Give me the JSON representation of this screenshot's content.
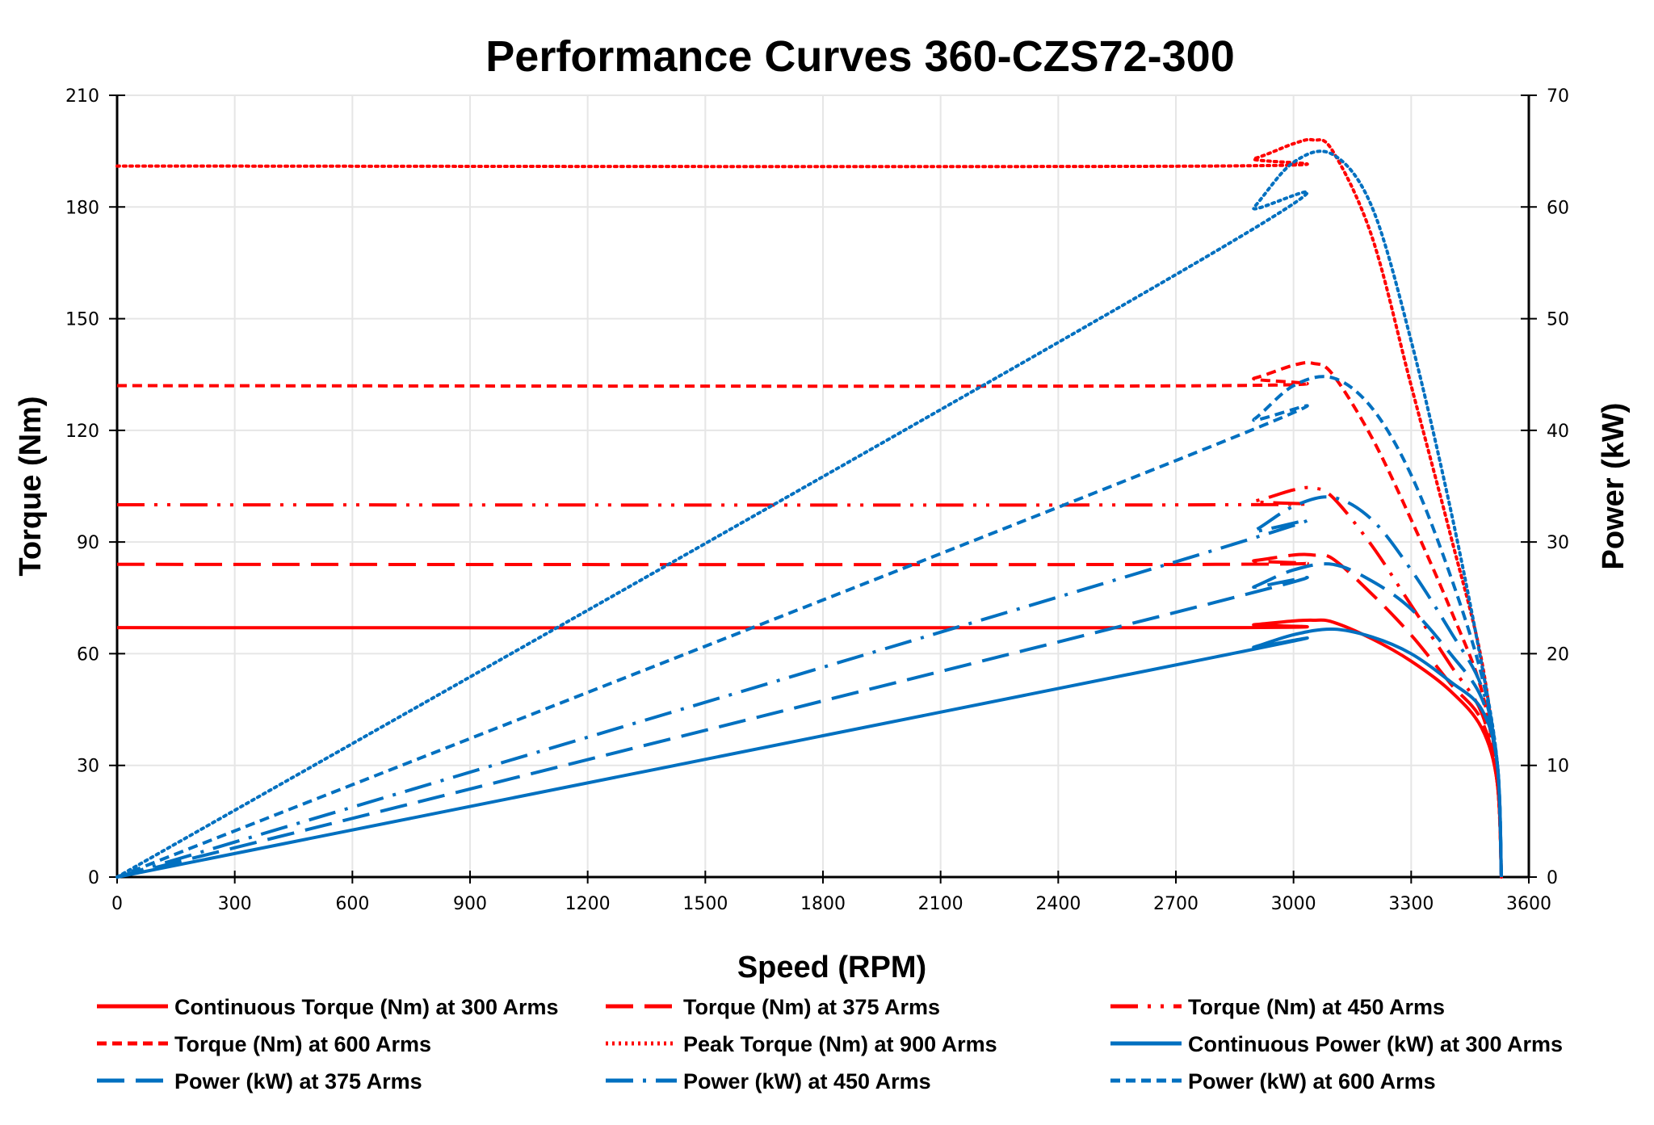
{
  "chart_data": {
    "type": "line",
    "title": "Performance Curves 360-CZS72-300",
    "xlabel": "Speed (RPM)",
    "ylabel": "Torque (Nm)",
    "y2label": "Power (kW)",
    "xlim": [
      0,
      3600
    ],
    "ylim": [
      0,
      210
    ],
    "y2lim": [
      0,
      70
    ],
    "xticks": [
      0,
      300,
      600,
      900,
      1200,
      1500,
      1800,
      2100,
      2400,
      2700,
      3000,
      3300,
      3600
    ],
    "yticks": [
      0,
      30,
      60,
      90,
      120,
      150,
      180,
      210
    ],
    "y2ticks": [
      0,
      10,
      20,
      30,
      40,
      50,
      60,
      70
    ],
    "grid": true,
    "legend_placement": "bottom",
    "colors": {
      "torque": "#ff0000",
      "power": "#0070c0"
    },
    "torque_x": [
      0,
      2800,
      2900,
      3000,
      3050,
      3100,
      3200,
      3300,
      3400,
      3480,
      3520,
      3530
    ],
    "power_x": [
      0,
      2800,
      2900,
      3000,
      3100,
      3200,
      3300,
      3400,
      3480,
      3520,
      3530
    ],
    "series": [
      {
        "name": "Continuous Torque (Nm) at 300 Arms",
        "axis": "left",
        "color": "#ff0000",
        "style": "solid",
        "values": [
          67,
          67,
          67.8,
          68.8,
          69,
          68.5,
          64,
          58,
          50,
          40,
          25,
          0
        ]
      },
      {
        "name": "Torque (Nm) at 375 Arms",
        "axis": "left",
        "color": "#ff0000",
        "style": "longdash",
        "values": [
          84,
          84,
          85,
          86.5,
          86.5,
          85.5,
          76,
          65,
          52,
          42,
          25,
          0
        ]
      },
      {
        "name": "Torque (Nm) at 450 Arms",
        "axis": "left",
        "color": "#ff0000",
        "style": "dashdotdot",
        "values": [
          100,
          100,
          101,
          104,
          104.5,
          102,
          89,
          73,
          57,
          44,
          25,
          0
        ]
      },
      {
        "name": "Torque (Nm) at 600 Arms",
        "axis": "left",
        "color": "#ff0000",
        "style": "dash",
        "values": [
          132,
          132,
          134,
          137.5,
          138,
          135,
          118,
          96,
          72,
          50,
          25,
          0
        ]
      },
      {
        "name": "Peak Torque (Nm) at 900  Arms",
        "axis": "left",
        "color": "#ff0000",
        "style": "dot",
        "values": [
          191,
          191,
          193,
          197,
          198,
          195,
          172,
          132,
          92,
          58,
          25,
          0
        ]
      },
      {
        "name": "Continuous Power (kW) at 300 Arms",
        "axis": "right",
        "color": "#0070c0",
        "style": "solid",
        "values": [
          0,
          19.7,
          20.6,
          21.7,
          22.2,
          21.5,
          20,
          17.5,
          15,
          10,
          0
        ]
      },
      {
        "name": "Power (kW) at 375 Arms",
        "axis": "right",
        "color": "#0070c0",
        "style": "longdash",
        "values": [
          0,
          24.6,
          26,
          27.5,
          28,
          26.5,
          24,
          20,
          16,
          10,
          0
        ]
      },
      {
        "name": "Power (kW) at 450 Arms",
        "axis": "right",
        "color": "#0070c0",
        "style": "dashdot",
        "values": [
          0,
          29.3,
          31,
          33.2,
          34,
          32,
          27.5,
          22,
          17,
          10,
          0
        ]
      },
      {
        "name": "Power (kW) at 600 Arms",
        "axis": "right",
        "color": "#0070c0",
        "style": "dash",
        "values": [
          0,
          38.7,
          41,
          44,
          44.7,
          42,
          36,
          27,
          18,
          10,
          0
        ]
      },
      {
        "name": "",
        "axis": "right",
        "color": "#0070c0",
        "style": "dot",
        "values": [
          0,
          56,
          60,
          64,
          64.7,
          60,
          48,
          33,
          19,
          10,
          0
        ]
      }
    ]
  }
}
